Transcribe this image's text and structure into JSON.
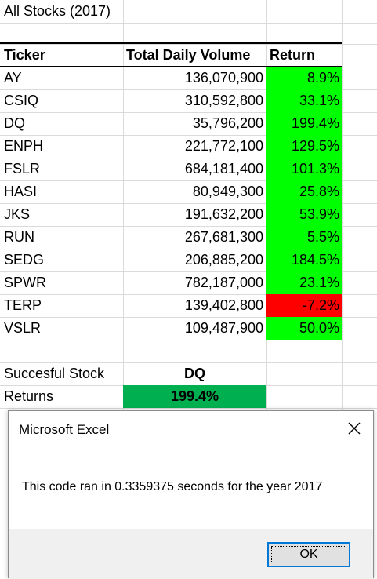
{
  "sheet": {
    "title": "All Stocks (2017)",
    "headers": {
      "ticker": "Ticker",
      "volume": "Total Daily Volume",
      "return": "Return"
    },
    "rows": [
      {
        "ticker": "AY",
        "volume": "136,070,900",
        "return": "8.9%",
        "status": "positive"
      },
      {
        "ticker": "CSIQ",
        "volume": "310,592,800",
        "return": "33.1%",
        "status": "positive"
      },
      {
        "ticker": "DQ",
        "volume": "35,796,200",
        "return": "199.4%",
        "status": "positive"
      },
      {
        "ticker": "ENPH",
        "volume": "221,772,100",
        "return": "129.5%",
        "status": "positive"
      },
      {
        "ticker": "FSLR",
        "volume": "684,181,400",
        "return": "101.3%",
        "status": "positive"
      },
      {
        "ticker": "HASI",
        "volume": "80,949,300",
        "return": "25.8%",
        "status": "positive"
      },
      {
        "ticker": "JKS",
        "volume": "191,632,200",
        "return": "53.9%",
        "status": "positive"
      },
      {
        "ticker": "RUN",
        "volume": "267,681,300",
        "return": "5.5%",
        "status": "positive"
      },
      {
        "ticker": "SEDG",
        "volume": "206,885,200",
        "return": "184.5%",
        "status": "positive"
      },
      {
        "ticker": "SPWR",
        "volume": "782,187,000",
        "return": "23.1%",
        "status": "positive"
      },
      {
        "ticker": "TERP",
        "volume": "139,402,800",
        "return": "-7.2%",
        "status": "negative"
      },
      {
        "ticker": "VSLR",
        "volume": "109,487,900",
        "return": "50.0%",
        "status": "positive"
      }
    ],
    "summary": {
      "stock_label": "Succesful Stock",
      "stock_value": "DQ",
      "returns_label": "Returns",
      "returns_value": "199.4%"
    }
  },
  "dialog": {
    "title": "Microsoft Excel",
    "message": "This code ran in 0.3359375 seconds for the year 2017",
    "ok_label": "OK",
    "close_icon": "close-icon"
  },
  "colors": {
    "positive": "#00ff00",
    "negative": "#ff0000",
    "highlight": "#00b050",
    "focus": "#0078d7"
  }
}
